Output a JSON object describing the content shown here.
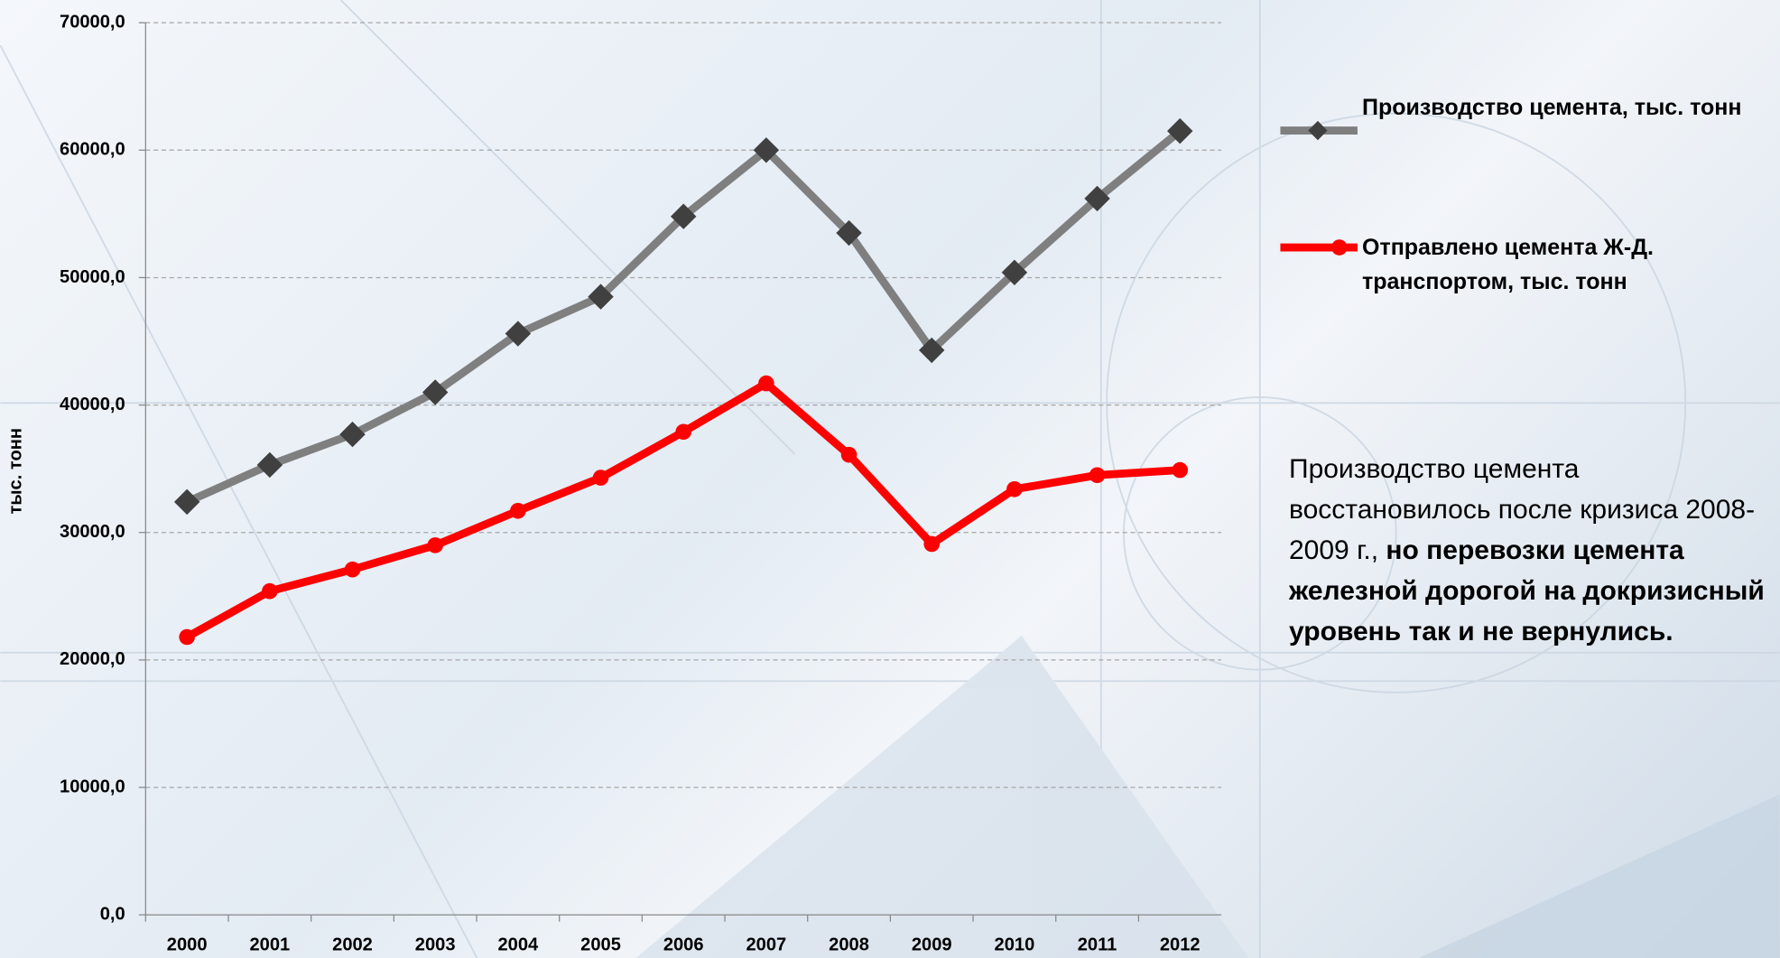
{
  "chart_data": {
    "type": "line",
    "y_label": "тыс. тонн",
    "categories": [
      "2000",
      "2001",
      "2002",
      "2003",
      "2004",
      "2005",
      "2006",
      "2007",
      "2008",
      "2009",
      "2010",
      "2011",
      "2012"
    ],
    "series": [
      {
        "name": "Производство цемента, тыс. тонн",
        "color": "#7f7f7f",
        "values": [
          32400,
          35300,
          37700,
          41000,
          45600,
          48500,
          54800,
          60000,
          53500,
          44300,
          50400,
          56200,
          61500
        ]
      },
      {
        "name": "Отправлено цемента Ж-Д. транспортом, тыс. тонн",
        "color": "#ff0000",
        "values": [
          21800,
          25400,
          27100,
          29000,
          31700,
          34300,
          37900,
          41700,
          36100,
          29100,
          33400,
          34500,
          34900
        ]
      }
    ],
    "ylim": [
      0,
      70000
    ],
    "yticks": [
      {
        "value": 0,
        "label": "0,0"
      },
      {
        "value": 10000,
        "label": "10000,0"
      },
      {
        "value": 20000,
        "label": "20000,0"
      },
      {
        "value": 30000,
        "label": "30000,0"
      },
      {
        "value": 40000,
        "label": "40000,0"
      },
      {
        "value": 50000,
        "label": "50000,0"
      },
      {
        "value": 60000,
        "label": "60000,0"
      },
      {
        "value": 70000,
        "label": "70000,0"
      }
    ],
    "grid": true,
    "legend": "right",
    "annotation": [
      "Производство цемента восстановилось после кризиса 2008-2009 г., ",
      "но перевозки цемента железной дорогой на докризисный уровень так и не вернулись."
    ]
  }
}
